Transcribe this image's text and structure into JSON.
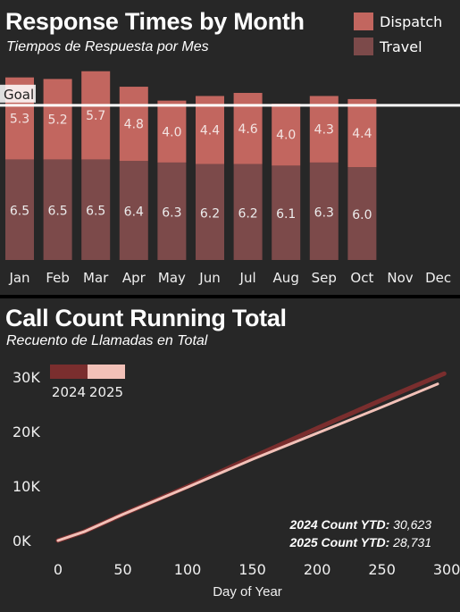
{
  "chart_data": [
    {
      "type": "bar",
      "title": "Response Times by Month",
      "subtitle": "Tiempos de Respuesta por Mes",
      "stacked": true,
      "categories": [
        "Jan",
        "Feb",
        "Mar",
        "Apr",
        "May",
        "Jun",
        "Jul",
        "Aug",
        "Sep",
        "Oct",
        "Nov",
        "Dec"
      ],
      "series": [
        {
          "name": "Travel",
          "color": "#7c4a4a",
          "values": [
            6.5,
            6.5,
            6.5,
            6.4,
            6.3,
            6.2,
            6.2,
            6.1,
            6.3,
            6.0,
            null,
            null
          ]
        },
        {
          "name": "Dispatch",
          "color": "#c2665f",
          "values": [
            5.3,
            5.2,
            5.7,
            4.8,
            4.0,
            4.4,
            4.6,
            4.0,
            4.3,
            4.4,
            null,
            null
          ]
        }
      ],
      "goal_label": "Goal",
      "goal_value": 10,
      "ylim": [
        0,
        12.3
      ],
      "legend_position": "top-right"
    },
    {
      "type": "line",
      "title": "Call Count Running Total",
      "subtitle": "Recuento de Llamadas en Total",
      "xlabel": "Day of Year",
      "xlim": [
        -10,
        300
      ],
      "ylim": [
        -1500,
        31500
      ],
      "xticks": [
        0,
        50,
        100,
        150,
        200,
        250,
        300
      ],
      "yticks": [
        0,
        10000,
        20000,
        30000
      ],
      "ytick_labels": [
        "0K",
        "10K",
        "20K",
        "30K"
      ],
      "series": [
        {
          "name": "2024",
          "color": "#7a2e2e",
          "x": [
            0,
            20,
            50,
            100,
            150,
            200,
            250,
            298
          ],
          "y": [
            0,
            1600,
            4800,
            9900,
            15300,
            20600,
            25800,
            30623
          ]
        },
        {
          "name": "2025",
          "color": "#f2c1b8",
          "x": [
            0,
            20,
            50,
            100,
            150,
            200,
            250,
            293
          ],
          "y": [
            0,
            1600,
            4800,
            9800,
            14900,
            19700,
            24500,
            28731
          ]
        }
      ],
      "annotations": [
        {
          "label": "2024 Count YTD:",
          "value": "30,623"
        },
        {
          "label": "2025 Count YTD:",
          "value": "28,731"
        }
      ],
      "legend_position": "top-left"
    }
  ]
}
